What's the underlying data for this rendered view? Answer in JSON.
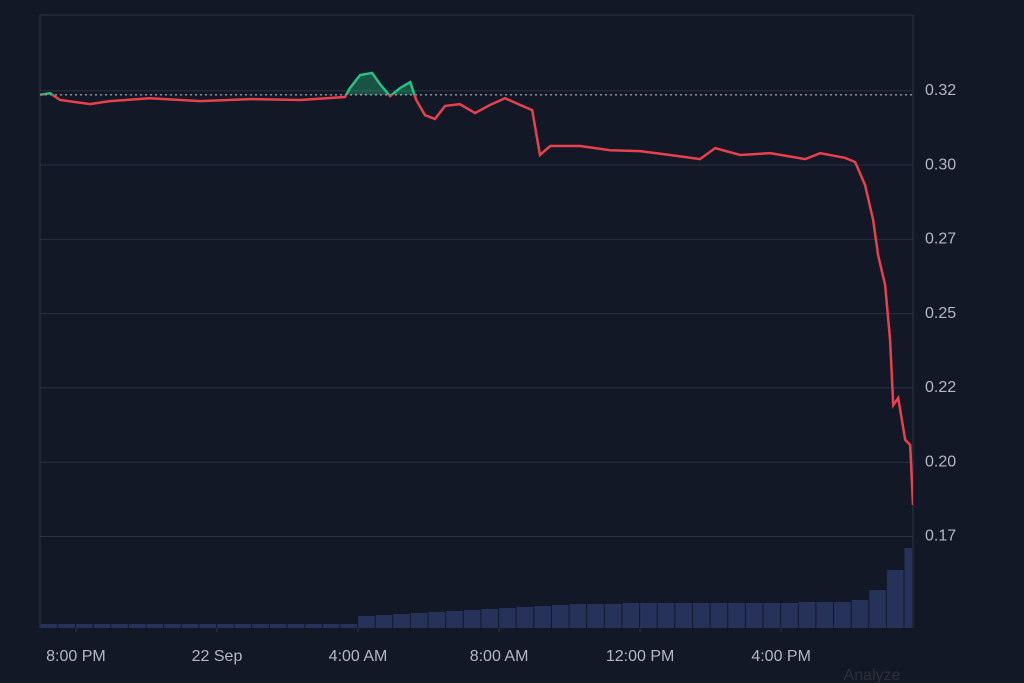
{
  "chart_data": {
    "type": "line",
    "xlim": [
      -1.02,
      23.74
    ],
    "ylim": [
      0.1442,
      0.3505
    ],
    "y2lim": [
      0,
      100
    ],
    "xticks": [
      {
        "value": 0,
        "label": "8:00 PM"
      },
      {
        "value": 4,
        "label": "22 Sep"
      },
      {
        "value": 8,
        "label": "4:00 AM"
      },
      {
        "value": 12,
        "label": "8:00 AM"
      },
      {
        "value": 16,
        "label": "12:00 PM"
      },
      {
        "value": 20,
        "label": "4:00 PM"
      }
    ],
    "yticks": [
      {
        "value": 0.325,
        "label": "0.32"
      },
      {
        "value": 0.3,
        "label": "0.30"
      },
      {
        "value": 0.275,
        "label": "0.27"
      },
      {
        "value": 0.25,
        "label": "0.25"
      },
      {
        "value": 0.225,
        "label": "0.22"
      },
      {
        "value": 0.2,
        "label": "0.20"
      },
      {
        "value": 0.175,
        "label": "0.17"
      }
    ],
    "grid": true,
    "baseline": 0.3236,
    "up_color": "#26c281",
    "down_color": "#e8414d",
    "volume_color": "#27325a",
    "price": {
      "x": [
        -1.02,
        -0.74,
        -0.45,
        0.4,
        0.96,
        2.1,
        3.52,
        4.94,
        6.35,
        7.63,
        7.77,
        8.06,
        8.4,
        8.62,
        8.91,
        9.19,
        9.48,
        9.65,
        9.9,
        10.18,
        10.47,
        10.89,
        11.32,
        11.74,
        12.17,
        12.6,
        12.94,
        13.16,
        13.45,
        14.3,
        15.15,
        16.0,
        16.85,
        17.7,
        18.13,
        18.84,
        19.69,
        20.68,
        21.11,
        21.82,
        22.1,
        22.38,
        22.61,
        22.75,
        22.95,
        23.09,
        23.18,
        23.32,
        23.52,
        23.66,
        23.74
      ],
      "values": [
        0.3236,
        0.3242,
        0.3219,
        0.3205,
        0.3215,
        0.3225,
        0.3215,
        0.3222,
        0.3219,
        0.3229,
        0.3259,
        0.3303,
        0.331,
        0.3273,
        0.3232,
        0.3259,
        0.3279,
        0.3219,
        0.3168,
        0.3155,
        0.3199,
        0.3205,
        0.3175,
        0.3202,
        0.3225,
        0.3202,
        0.3185,
        0.3034,
        0.3064,
        0.3064,
        0.305,
        0.3047,
        0.3034,
        0.302,
        0.3057,
        0.3034,
        0.304,
        0.302,
        0.304,
        0.3024,
        0.301,
        0.2933,
        0.2815,
        0.2697,
        0.2596,
        0.2411,
        0.2192,
        0.2216,
        0.2075,
        0.2058,
        0.1856
      ]
    },
    "volume": {
      "x": [
        -1,
        -0.5,
        0,
        0.5,
        1,
        1.5,
        2,
        2.5,
        3,
        3.5,
        4,
        4.5,
        5,
        5.5,
        6,
        6.5,
        7,
        7.5,
        8,
        8.5,
        9,
        9.5,
        10,
        10.5,
        11,
        11.5,
        12,
        12.5,
        13,
        13.5,
        14,
        14.5,
        15,
        15.5,
        16,
        16.5,
        17,
        17.5,
        18,
        18.5,
        19,
        19.5,
        20,
        20.5,
        21,
        21.5,
        22,
        22.5,
        23,
        23.5
      ],
      "values": [
        4,
        4,
        4,
        4,
        4,
        4,
        4,
        4,
        4,
        4,
        4,
        4,
        4,
        4,
        4,
        4,
        4,
        4,
        12,
        13,
        14,
        15,
        16,
        17,
        18,
        19,
        20,
        21,
        22,
        23,
        24,
        24,
        24,
        25,
        25,
        25,
        25,
        25,
        25,
        25,
        25,
        25,
        25,
        26,
        26,
        26,
        28,
        38,
        58,
        80
      ]
    }
  },
  "button": "Analyze"
}
